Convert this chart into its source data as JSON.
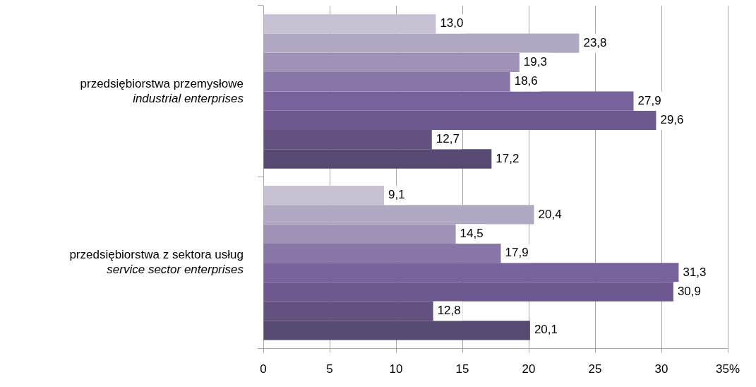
{
  "chart_data": {
    "type": "bar",
    "orientation": "horizontal",
    "categories": [
      "przedsiębiorstwa przemysłowe\nindustrial enterprises",
      "przedsiębiorstwa z sektora usług\nservice sector enterprises"
    ],
    "series": [
      {
        "color": "#c8c0d3",
        "values": [
          13.0,
          9.1
        ],
        "value_labels": [
          "13,0",
          "9,1"
        ]
      },
      {
        "color": "#b1a8c3",
        "values": [
          23.8,
          20.4
        ],
        "value_labels": [
          "23,8",
          "20,4"
        ]
      },
      {
        "color": "#9f92b6",
        "values": [
          19.3,
          14.5
        ],
        "value_labels": [
          "19,3",
          "14,5"
        ]
      },
      {
        "color": "#8976a9",
        "values": [
          18.6,
          17.9
        ],
        "value_labels": [
          "18,6",
          "17,9"
        ]
      },
      {
        "color": "#77629b",
        "values": [
          27.9,
          31.3
        ],
        "value_labels": [
          "27,9",
          "31,3"
        ]
      },
      {
        "color": "#6d5990",
        "values": [
          29.6,
          30.9
        ],
        "value_labels": [
          "29,6",
          "30,9"
        ]
      },
      {
        "color": "#63527f",
        "values": [
          12.7,
          12.8
        ],
        "value_labels": [
          "12,7",
          "12,8"
        ]
      },
      {
        "color": "#564a72",
        "values": [
          17.2,
          20.1
        ],
        "value_labels": [
          "17,2",
          "20,1"
        ]
      }
    ],
    "xlim": [
      0,
      35
    ],
    "xticks": [
      0,
      5,
      10,
      15,
      20,
      25,
      30,
      {
        "value": 35,
        "label": "35%"
      }
    ],
    "grid": "x",
    "legend": false
  }
}
